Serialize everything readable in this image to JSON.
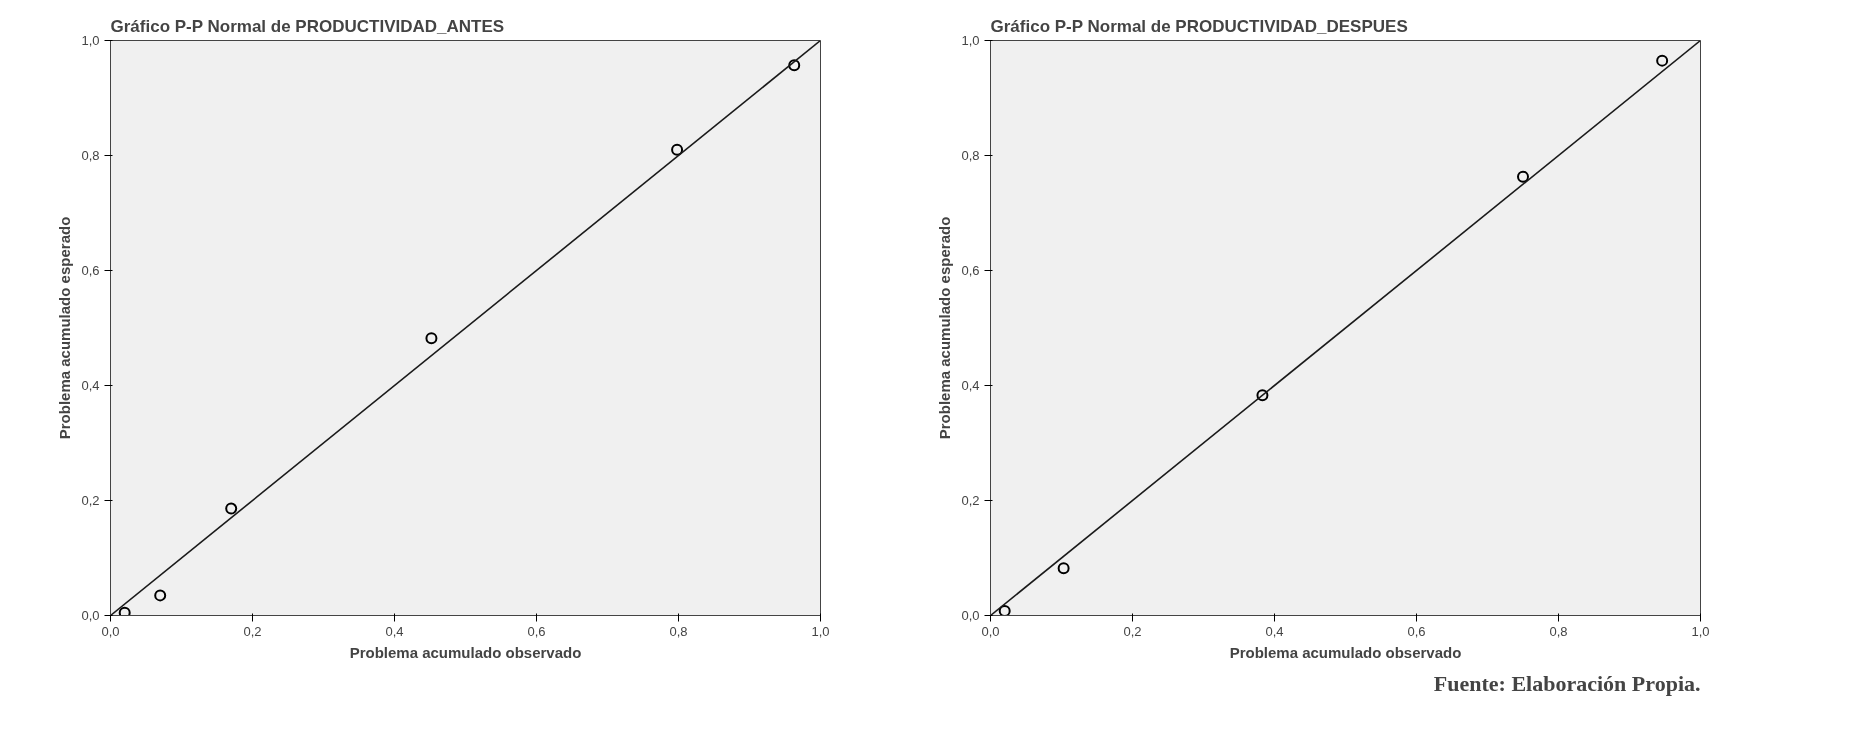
{
  "chart_data": [
    {
      "type": "scatter",
      "title": "Gráfico P-P Normal de PRODUCTIVIDAD_ANTES",
      "xlabel": "Problema acumulado observado",
      "ylabel": "Problema acumulado esperado",
      "grid": false,
      "xlim": [
        0,
        1
      ],
      "ylim": [
        0,
        1
      ],
      "xticks": [
        {
          "value": 0,
          "label": "0,0"
        },
        {
          "value": 0.2,
          "label": "0,2"
        },
        {
          "value": 0.4,
          "label": "0,4"
        },
        {
          "value": 0.6,
          "label": "0,6"
        },
        {
          "value": 0.8,
          "label": "0,8"
        },
        {
          "value": 1,
          "label": "1,0"
        }
      ],
      "yticks": [
        {
          "value": 0,
          "label": "0,0"
        },
        {
          "value": 0.2,
          "label": "0,2"
        },
        {
          "value": 0.4,
          "label": "0,4"
        },
        {
          "value": 0.6,
          "label": "0,6"
        },
        {
          "value": 0.8,
          "label": "0,8"
        },
        {
          "value": 1,
          "label": "1,0"
        }
      ],
      "series": [
        {
          "marker": "circle",
          "color": "#000000",
          "x": [
            0.02,
            0.07,
            0.17,
            0.452,
            0.798,
            0.963
          ],
          "values": [
            0.005,
            0.035,
            0.186,
            0.482,
            0.81,
            0.957
          ]
        },
        {
          "type": "line",
          "color": "#1a1a1a",
          "x": [
            0,
            1
          ],
          "values": [
            0,
            1
          ]
        }
      ]
    },
    {
      "type": "scatter",
      "title": "Gráfico P-P Normal de PRODUCTIVIDAD_DESPUES",
      "xlabel": "Problema acumulado observado",
      "ylabel": "Problema acumulado esperado",
      "grid": false,
      "xlim": [
        0,
        1
      ],
      "ylim": [
        0,
        1
      ],
      "xticks": [
        {
          "value": 0,
          "label": "0,0"
        },
        {
          "value": 0.2,
          "label": "0,2"
        },
        {
          "value": 0.4,
          "label": "0,4"
        },
        {
          "value": 0.6,
          "label": "0,6"
        },
        {
          "value": 0.8,
          "label": "0,8"
        },
        {
          "value": 1,
          "label": "1,0"
        }
      ],
      "yticks": [
        {
          "value": 0,
          "label": "0,0"
        },
        {
          "value": 0.2,
          "label": "0,2"
        },
        {
          "value": 0.4,
          "label": "0,4"
        },
        {
          "value": 0.6,
          "label": "0,6"
        },
        {
          "value": 0.8,
          "label": "0,8"
        },
        {
          "value": 1,
          "label": "1,0"
        }
      ],
      "series": [
        {
          "marker": "circle",
          "color": "#000000",
          "x": [
            0.02,
            0.103,
            0.383,
            0.75,
            0.946
          ],
          "values": [
            0.008,
            0.082,
            0.383,
            0.763,
            0.965
          ]
        },
        {
          "type": "line",
          "color": "#1a1a1a",
          "x": [
            0,
            1
          ],
          "values": [
            0,
            1
          ]
        }
      ],
      "annotations": [
        "Fuente: Elaboración Propia."
      ]
    }
  ]
}
